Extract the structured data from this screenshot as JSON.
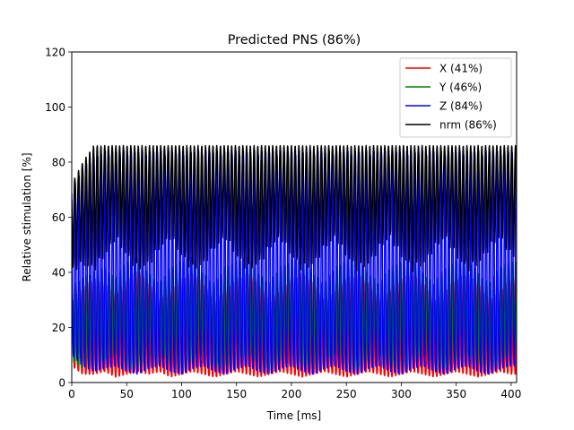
{
  "chart_data": {
    "type": "line",
    "title": "Predicted PNS (86%)",
    "xlabel": "Time [ms]",
    "ylabel": "Relative stimulation [%]",
    "xlim": [
      0,
      405
    ],
    "ylim": [
      0,
      120
    ],
    "xticks": [
      0,
      50,
      100,
      150,
      200,
      250,
      300,
      350,
      400
    ],
    "yticks": [
      0,
      20,
      40,
      60,
      80,
      100,
      120
    ],
    "grid": false,
    "legend_position": "upper right",
    "oscillation_period_ms": 3.4,
    "series": [
      {
        "name": "X (41%)",
        "color": "#ff0000",
        "peak": 41,
        "envelope_t": [
          0,
          10,
          20,
          30,
          40,
          50,
          60,
          70,
          80,
          90,
          100,
          110,
          120,
          130,
          140,
          150,
          160,
          170,
          180,
          190,
          200,
          210,
          220,
          230,
          240,
          250,
          260,
          270,
          280,
          290,
          300,
          310,
          320,
          330,
          340,
          350,
          360,
          370,
          380,
          390,
          400
        ],
        "envelope_low": [
          6,
          3,
          3,
          4,
          2,
          3,
          4,
          3,
          4,
          2,
          3,
          4,
          3,
          2,
          3,
          4,
          3,
          2,
          3,
          4,
          3,
          2,
          3,
          4,
          3,
          2,
          3,
          4,
          3,
          2,
          3,
          4,
          3,
          2,
          3,
          4,
          3,
          2,
          3,
          4,
          3
        ],
        "envelope_high": [
          30,
          35,
          38,
          36,
          32,
          38,
          41,
          36,
          30,
          34,
          38,
          40,
          36,
          30,
          34,
          38,
          40,
          36,
          30,
          34,
          38,
          40,
          36,
          30,
          34,
          38,
          40,
          36,
          30,
          34,
          38,
          40,
          36,
          30,
          34,
          38,
          40,
          36,
          30,
          34,
          38
        ]
      },
      {
        "name": "Y (46%)",
        "color": "#008000",
        "peak": 46,
        "envelope_t": [
          0,
          10,
          20,
          30,
          40,
          50,
          60,
          70,
          80,
          90,
          100,
          110,
          120,
          130,
          140,
          150,
          160,
          170,
          180,
          190,
          200,
          210,
          220,
          230,
          240,
          250,
          260,
          270,
          280,
          290,
          300,
          310,
          320,
          330,
          340,
          350,
          360,
          370,
          380,
          390,
          400
        ],
        "envelope_low": [
          8,
          5,
          6,
          8,
          10,
          6,
          5,
          8,
          10,
          6,
          5,
          8,
          10,
          6,
          5,
          8,
          10,
          6,
          5,
          8,
          10,
          6,
          5,
          8,
          10,
          6,
          5,
          8,
          10,
          6,
          5,
          8,
          10,
          6,
          5,
          8,
          10,
          6,
          5,
          8,
          10
        ],
        "envelope_high": [
          35,
          38,
          40,
          42,
          38,
          44,
          46,
          40,
          36,
          42,
          44,
          46,
          40,
          36,
          42,
          44,
          46,
          40,
          36,
          42,
          44,
          46,
          40,
          36,
          42,
          44,
          46,
          40,
          36,
          42,
          44,
          46,
          40,
          36,
          42,
          44,
          46,
          40,
          36,
          42,
          44
        ]
      },
      {
        "name": "Z (84%)",
        "color": "#0000ff",
        "peak": 84,
        "envelope_t": [
          0,
          10,
          20,
          30,
          40,
          50,
          60,
          70,
          80,
          90,
          100,
          110,
          120,
          130,
          140,
          150,
          160,
          170,
          180,
          190,
          200,
          210,
          220,
          230,
          240,
          250,
          260,
          270,
          280,
          290,
          300,
          310,
          320,
          330,
          340,
          350,
          360,
          370,
          380,
          390,
          400
        ],
        "envelope_low": [
          10,
          6,
          4,
          5,
          6,
          4,
          3,
          5,
          6,
          4,
          3,
          5,
          6,
          4,
          3,
          5,
          6,
          4,
          3,
          5,
          6,
          4,
          3,
          5,
          6,
          4,
          3,
          5,
          6,
          4,
          3,
          5,
          6,
          4,
          3,
          5,
          6,
          4,
          3,
          5,
          6
        ],
        "envelope_high": [
          70,
          78,
          82,
          84,
          84,
          84,
          84,
          84,
          84,
          84,
          84,
          84,
          84,
          84,
          84,
          84,
          84,
          84,
          84,
          84,
          84,
          84,
          84,
          84,
          84,
          84,
          84,
          84,
          84,
          84,
          84,
          84,
          84,
          84,
          84,
          84,
          84,
          84,
          84,
          84,
          84
        ]
      },
      {
        "name": "nrm (86%)",
        "color": "#000000",
        "peak": 86,
        "envelope_t": [
          0,
          10,
          20,
          30,
          40,
          50,
          60,
          70,
          80,
          90,
          100,
          110,
          120,
          130,
          140,
          150,
          160,
          170,
          180,
          190,
          200,
          210,
          220,
          230,
          240,
          250,
          260,
          270,
          280,
          290,
          300,
          310,
          320,
          330,
          340,
          350,
          360,
          370,
          380,
          390,
          400
        ],
        "envelope_low": [
          40,
          42,
          40,
          45,
          52,
          45,
          40,
          42,
          48,
          52,
          45,
          40,
          42,
          48,
          52,
          45,
          40,
          42,
          48,
          52,
          45,
          40,
          42,
          48,
          52,
          45,
          40,
          42,
          48,
          52,
          45,
          40,
          42,
          48,
          52,
          45,
          40,
          42,
          48,
          52,
          45
        ],
        "envelope_high": [
          72,
          80,
          86,
          86,
          86,
          86,
          86,
          86,
          86,
          86,
          86,
          86,
          86,
          86,
          86,
          86,
          86,
          86,
          86,
          86,
          86,
          86,
          86,
          86,
          86,
          86,
          86,
          86,
          86,
          86,
          86,
          86,
          86,
          86,
          86,
          86,
          86,
          86,
          86,
          86,
          86
        ]
      }
    ]
  }
}
